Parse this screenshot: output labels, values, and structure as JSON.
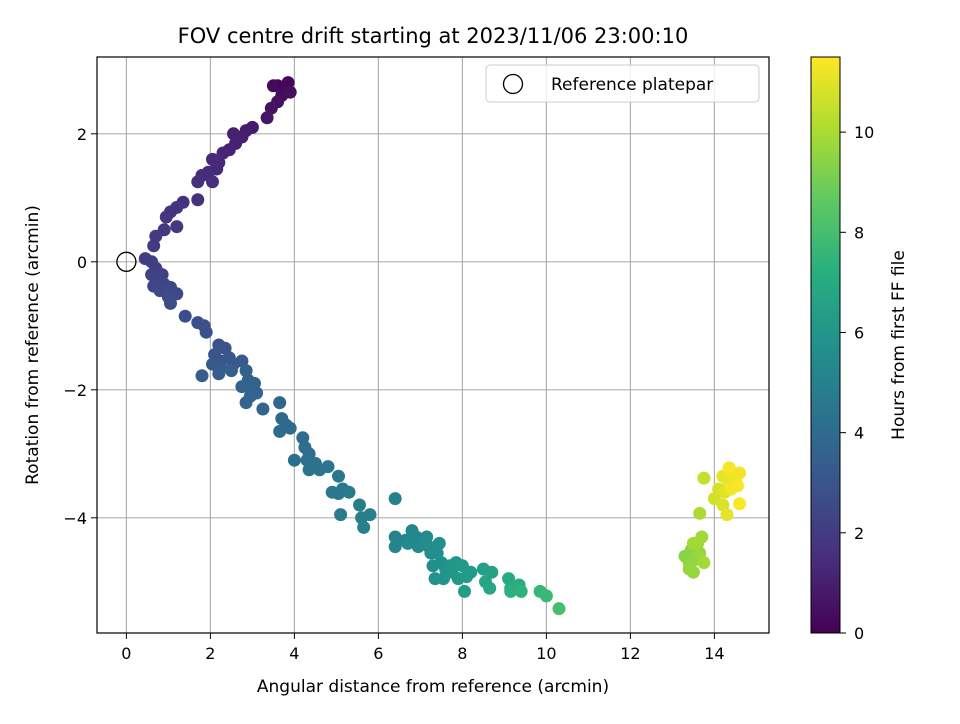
{
  "chart_data": {
    "type": "scatter",
    "title": "FOV centre drift starting at 2023/11/06 23:00:10",
    "xlabel": "Angular distance from reference (arcmin)",
    "ylabel": "Rotation from reference (arcmin)",
    "xlim": [
      -0.7,
      15.3
    ],
    "ylim": [
      -5.8,
      3.2
    ],
    "xticks": [
      0,
      2,
      4,
      6,
      8,
      10,
      12,
      14
    ],
    "yticks": [
      -4,
      -2,
      0,
      2
    ],
    "grid": true,
    "legend": {
      "placement": "top-right",
      "entries": [
        "Reference platepar"
      ]
    },
    "reference": {
      "x": 0,
      "y": 0,
      "label": "Reference platepar"
    },
    "colorbar": {
      "label": "Hours from first FF file",
      "range": [
        0,
        11.5
      ],
      "ticks": [
        0,
        2,
        4,
        6,
        8,
        10
      ],
      "colormap": "viridis"
    },
    "points": [
      {
        "x": 3.6,
        "y": 2.75,
        "t": 0.1
      },
      {
        "x": 3.75,
        "y": 2.7,
        "t": 0.15
      },
      {
        "x": 3.85,
        "y": 2.8,
        "t": 0.2
      },
      {
        "x": 3.5,
        "y": 2.75,
        "t": 0.3
      },
      {
        "x": 3.7,
        "y": 2.6,
        "t": 0.4
      },
      {
        "x": 3.9,
        "y": 2.65,
        "t": 0.45
      },
      {
        "x": 3.6,
        "y": 2.5,
        "t": 0.5
      },
      {
        "x": 3.45,
        "y": 2.4,
        "t": 0.6
      },
      {
        "x": 3.35,
        "y": 2.25,
        "t": 0.7
      },
      {
        "x": 3.0,
        "y": 2.1,
        "t": 0.8
      },
      {
        "x": 2.85,
        "y": 2.05,
        "t": 0.9
      },
      {
        "x": 2.75,
        "y": 1.95,
        "t": 1.0
      },
      {
        "x": 2.55,
        "y": 2.0,
        "t": 1.05
      },
      {
        "x": 2.6,
        "y": 1.85,
        "t": 1.1
      },
      {
        "x": 2.45,
        "y": 1.75,
        "t": 1.15
      },
      {
        "x": 2.3,
        "y": 1.7,
        "t": 1.2
      },
      {
        "x": 2.2,
        "y": 1.55,
        "t": 1.25
      },
      {
        "x": 2.05,
        "y": 1.6,
        "t": 1.3
      },
      {
        "x": 2.15,
        "y": 1.45,
        "t": 1.35
      },
      {
        "x": 1.95,
        "y": 1.4,
        "t": 1.4
      },
      {
        "x": 1.8,
        "y": 1.35,
        "t": 1.45
      },
      {
        "x": 2.05,
        "y": 1.25,
        "t": 1.5
      },
      {
        "x": 1.7,
        "y": 1.25,
        "t": 1.55
      },
      {
        "x": 1.7,
        "y": 0.97,
        "t": 1.6
      },
      {
        "x": 1.35,
        "y": 0.93,
        "t": 1.65
      },
      {
        "x": 1.2,
        "y": 0.85,
        "t": 1.7
      },
      {
        "x": 1.05,
        "y": 0.78,
        "t": 1.75
      },
      {
        "x": 0.95,
        "y": 0.7,
        "t": 1.8
      },
      {
        "x": 1.2,
        "y": 0.55,
        "t": 1.85
      },
      {
        "x": 0.9,
        "y": 0.5,
        "t": 1.9
      },
      {
        "x": 0.7,
        "y": 0.4,
        "t": 1.95
      },
      {
        "x": 0.65,
        "y": 0.25,
        "t": 2.0
      },
      {
        "x": 0.45,
        "y": 0.05,
        "t": 2.05
      },
      {
        "x": 0.6,
        "y": 0.0,
        "t": 2.1
      },
      {
        "x": 0.7,
        "y": -0.1,
        "t": 2.15
      },
      {
        "x": 0.85,
        "y": -0.2,
        "t": 2.2
      },
      {
        "x": 0.6,
        "y": -0.2,
        "t": 2.25
      },
      {
        "x": 0.75,
        "y": -0.3,
        "t": 2.3
      },
      {
        "x": 0.9,
        "y": -0.35,
        "t": 2.35
      },
      {
        "x": 0.65,
        "y": -0.38,
        "t": 2.4
      },
      {
        "x": 0.8,
        "y": -0.45,
        "t": 2.45
      },
      {
        "x": 1.05,
        "y": -0.4,
        "t": 2.5
      },
      {
        "x": 1.2,
        "y": -0.5,
        "t": 2.55
      },
      {
        "x": 1.0,
        "y": -0.55,
        "t": 2.6
      },
      {
        "x": 1.05,
        "y": -0.65,
        "t": 2.65
      },
      {
        "x": 1.4,
        "y": -0.85,
        "t": 2.7
      },
      {
        "x": 1.7,
        "y": -0.95,
        "t": 2.75
      },
      {
        "x": 1.85,
        "y": -1.0,
        "t": 2.8
      },
      {
        "x": 1.9,
        "y": -1.1,
        "t": 2.85
      },
      {
        "x": 2.2,
        "y": -1.3,
        "t": 2.9
      },
      {
        "x": 2.35,
        "y": -1.35,
        "t": 2.95
      },
      {
        "x": 2.1,
        "y": -1.45,
        "t": 3.0
      },
      {
        "x": 2.25,
        "y": -1.55,
        "t": 3.05
      },
      {
        "x": 2.45,
        "y": -1.5,
        "t": 3.1
      },
      {
        "x": 2.55,
        "y": -1.6,
        "t": 3.15
      },
      {
        "x": 2.75,
        "y": -1.55,
        "t": 3.2
      },
      {
        "x": 2.05,
        "y": -1.6,
        "t": 3.25
      },
      {
        "x": 2.25,
        "y": -1.65,
        "t": 3.3
      },
      {
        "x": 2.2,
        "y": -1.75,
        "t": 3.35
      },
      {
        "x": 1.8,
        "y": -1.78,
        "t": 3.4
      },
      {
        "x": 2.5,
        "y": -1.7,
        "t": 3.45
      },
      {
        "x": 2.85,
        "y": -1.7,
        "t": 3.5
      },
      {
        "x": 2.9,
        "y": -1.85,
        "t": 3.55
      },
      {
        "x": 3.05,
        "y": -1.9,
        "t": 3.6
      },
      {
        "x": 2.75,
        "y": -1.95,
        "t": 3.62
      },
      {
        "x": 3.0,
        "y": -2.0,
        "t": 3.65
      },
      {
        "x": 2.95,
        "y": -2.1,
        "t": 3.68
      },
      {
        "x": 2.85,
        "y": -2.2,
        "t": 3.7
      },
      {
        "x": 3.1,
        "y": -2.05,
        "t": 3.72
      },
      {
        "x": 3.25,
        "y": -2.3,
        "t": 3.75
      },
      {
        "x": 3.65,
        "y": -2.2,
        "t": 3.8
      },
      {
        "x": 3.7,
        "y": -2.45,
        "t": 3.85
      },
      {
        "x": 3.8,
        "y": -2.55,
        "t": 3.9
      },
      {
        "x": 3.65,
        "y": -2.65,
        "t": 3.95
      },
      {
        "x": 3.9,
        "y": -2.6,
        "t": 4.0
      },
      {
        "x": 4.2,
        "y": -2.75,
        "t": 4.05
      },
      {
        "x": 4.25,
        "y": -2.9,
        "t": 4.1
      },
      {
        "x": 4.35,
        "y": -3.0,
        "t": 4.15
      },
      {
        "x": 4.0,
        "y": -3.1,
        "t": 4.2
      },
      {
        "x": 4.3,
        "y": -3.1,
        "t": 4.25
      },
      {
        "x": 4.5,
        "y": -3.15,
        "t": 4.3
      },
      {
        "x": 4.35,
        "y": -3.25,
        "t": 4.35
      },
      {
        "x": 4.6,
        "y": -3.25,
        "t": 4.4
      },
      {
        "x": 4.8,
        "y": -3.2,
        "t": 4.45
      },
      {
        "x": 5.05,
        "y": -3.35,
        "t": 4.5
      },
      {
        "x": 4.9,
        "y": -3.6,
        "t": 4.55
      },
      {
        "x": 5.05,
        "y": -3.62,
        "t": 4.6
      },
      {
        "x": 5.15,
        "y": -3.55,
        "t": 4.65
      },
      {
        "x": 5.3,
        "y": -3.6,
        "t": 4.7
      },
      {
        "x": 5.1,
        "y": -3.95,
        "t": 4.75
      },
      {
        "x": 5.55,
        "y": -3.8,
        "t": 4.8
      },
      {
        "x": 5.6,
        "y": -4.0,
        "t": 4.85
      },
      {
        "x": 5.8,
        "y": -3.95,
        "t": 4.9
      },
      {
        "x": 5.65,
        "y": -4.15,
        "t": 4.95
      },
      {
        "x": 6.4,
        "y": -3.7,
        "t": 5.0
      },
      {
        "x": 6.4,
        "y": -4.3,
        "t": 5.1
      },
      {
        "x": 6.4,
        "y": -4.45,
        "t": 5.15
      },
      {
        "x": 6.65,
        "y": -4.35,
        "t": 5.2
      },
      {
        "x": 6.8,
        "y": -4.2,
        "t": 5.25
      },
      {
        "x": 6.9,
        "y": -4.3,
        "t": 5.3
      },
      {
        "x": 6.7,
        "y": -4.4,
        "t": 5.35
      },
      {
        "x": 6.95,
        "y": -4.45,
        "t": 5.4
      },
      {
        "x": 7.15,
        "y": -4.3,
        "t": 5.45
      },
      {
        "x": 7.2,
        "y": -4.45,
        "t": 5.5
      },
      {
        "x": 7.25,
        "y": -4.55,
        "t": 5.55
      },
      {
        "x": 7.45,
        "y": -4.4,
        "t": 5.6
      },
      {
        "x": 7.4,
        "y": -4.55,
        "t": 5.65
      },
      {
        "x": 7.3,
        "y": -4.75,
        "t": 5.7
      },
      {
        "x": 7.5,
        "y": -4.7,
        "t": 5.75
      },
      {
        "x": 7.35,
        "y": -4.95,
        "t": 5.8
      },
      {
        "x": 7.6,
        "y": -4.8,
        "t": 5.85
      },
      {
        "x": 7.55,
        "y": -4.95,
        "t": 5.9
      },
      {
        "x": 7.7,
        "y": -4.75,
        "t": 5.95
      },
      {
        "x": 7.85,
        "y": -4.7,
        "t": 6.0
      },
      {
        "x": 7.75,
        "y": -4.85,
        "t": 6.05
      },
      {
        "x": 7.9,
        "y": -4.95,
        "t": 6.1
      },
      {
        "x": 8.0,
        "y": -4.75,
        "t": 6.15
      },
      {
        "x": 8.1,
        "y": -4.92,
        "t": 6.2
      },
      {
        "x": 8.2,
        "y": -4.85,
        "t": 6.25
      },
      {
        "x": 8.05,
        "y": -5.15,
        "t": 6.3
      },
      {
        "x": 8.5,
        "y": -4.8,
        "t": 6.5
      },
      {
        "x": 8.7,
        "y": -4.85,
        "t": 6.6
      },
      {
        "x": 8.55,
        "y": -5.0,
        "t": 6.7
      },
      {
        "x": 8.65,
        "y": -5.1,
        "t": 6.8
      },
      {
        "x": 9.1,
        "y": -4.95,
        "t": 7.0
      },
      {
        "x": 9.15,
        "y": -5.1,
        "t": 7.1
      },
      {
        "x": 9.35,
        "y": -5.05,
        "t": 7.2
      },
      {
        "x": 9.15,
        "y": -5.15,
        "t": 7.3
      },
      {
        "x": 9.4,
        "y": -5.15,
        "t": 7.4
      },
      {
        "x": 9.85,
        "y": -5.15,
        "t": 7.6
      },
      {
        "x": 10.0,
        "y": -5.22,
        "t": 7.7
      },
      {
        "x": 10.3,
        "y": -5.42,
        "t": 8.0
      },
      {
        "x": 13.3,
        "y": -4.6,
        "t": 9.4
      },
      {
        "x": 13.45,
        "y": -4.5,
        "t": 9.45
      },
      {
        "x": 13.4,
        "y": -4.7,
        "t": 9.5
      },
      {
        "x": 13.55,
        "y": -4.65,
        "t": 9.55
      },
      {
        "x": 13.5,
        "y": -4.85,
        "t": 9.6
      },
      {
        "x": 13.4,
        "y": -4.8,
        "t": 9.65
      },
      {
        "x": 13.65,
        "y": -4.55,
        "t": 9.7
      },
      {
        "x": 13.6,
        "y": -4.4,
        "t": 9.75
      },
      {
        "x": 13.7,
        "y": -4.3,
        "t": 9.8
      },
      {
        "x": 13.5,
        "y": -4.4,
        "t": 9.85
      },
      {
        "x": 13.75,
        "y": -4.7,
        "t": 9.9
      },
      {
        "x": 13.65,
        "y": -3.93,
        "t": 10.0
      },
      {
        "x": 13.75,
        "y": -3.38,
        "t": 10.5
      },
      {
        "x": 14.0,
        "y": -3.7,
        "t": 10.7
      },
      {
        "x": 14.1,
        "y": -3.55,
        "t": 10.8
      },
      {
        "x": 14.2,
        "y": -3.8,
        "t": 10.9
      },
      {
        "x": 14.25,
        "y": -3.6,
        "t": 11.0
      },
      {
        "x": 14.3,
        "y": -3.95,
        "t": 11.05
      },
      {
        "x": 14.2,
        "y": -3.35,
        "t": 11.1
      },
      {
        "x": 14.35,
        "y": -3.45,
        "t": 11.15
      },
      {
        "x": 14.45,
        "y": -3.3,
        "t": 11.2
      },
      {
        "x": 14.5,
        "y": -3.4,
        "t": 11.25
      },
      {
        "x": 14.6,
        "y": -3.3,
        "t": 11.3
      },
      {
        "x": 14.4,
        "y": -3.55,
        "t": 11.32
      },
      {
        "x": 14.35,
        "y": -3.22,
        "t": 11.35
      },
      {
        "x": 14.55,
        "y": -3.5,
        "t": 11.4
      },
      {
        "x": 14.6,
        "y": -3.78,
        "t": 11.45
      }
    ]
  }
}
